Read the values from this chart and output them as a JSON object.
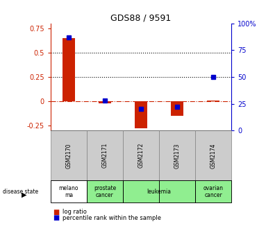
{
  "title": "GDS88 / 9591",
  "samples": [
    "GSM2170",
    "GSM2171",
    "GSM2172",
    "GSM2173",
    "GSM2174"
  ],
  "log_ratio": [
    0.65,
    -0.02,
    -0.28,
    -0.15,
    0.01
  ],
  "percentile_rank": [
    87,
    28,
    20,
    22,
    50
  ],
  "disease_state": [
    "melanoma",
    "prostate cancer",
    "leukemia",
    "leukemia",
    "ovarian cancer"
  ],
  "bar_color": "#cc2200",
  "dot_color": "#0000cc",
  "ylim_left": [
    -0.3,
    0.8
  ],
  "ylim_right": [
    0,
    100
  ],
  "yticks_left": [
    -0.25,
    0,
    0.25,
    0.5,
    0.75
  ],
  "ytick_labels_left": [
    "-0.25",
    "0",
    "0.25",
    "0.5",
    "0.75"
  ],
  "yticks_right": [
    0,
    25,
    50,
    75,
    100
  ],
  "ytick_labels_right": [
    "0",
    "25",
    "50",
    "75",
    "100%"
  ],
  "hline_y": [
    0.25,
    0.5
  ],
  "background_color": "#ffffff",
  "sample_label_bg": "#cccccc",
  "disease_color_map": {
    "melanoma": "#ffffff",
    "prostate cancer": "#90ee90",
    "leukemia": "#90ee90",
    "ovarian cancer": "#90ee90"
  },
  "disease_display": {
    "melanoma": "melano\nma",
    "prostate cancer": "prostate\ncancer",
    "leukemia": "leukemia",
    "ovarian cancer": "ovarian\ncancer"
  }
}
